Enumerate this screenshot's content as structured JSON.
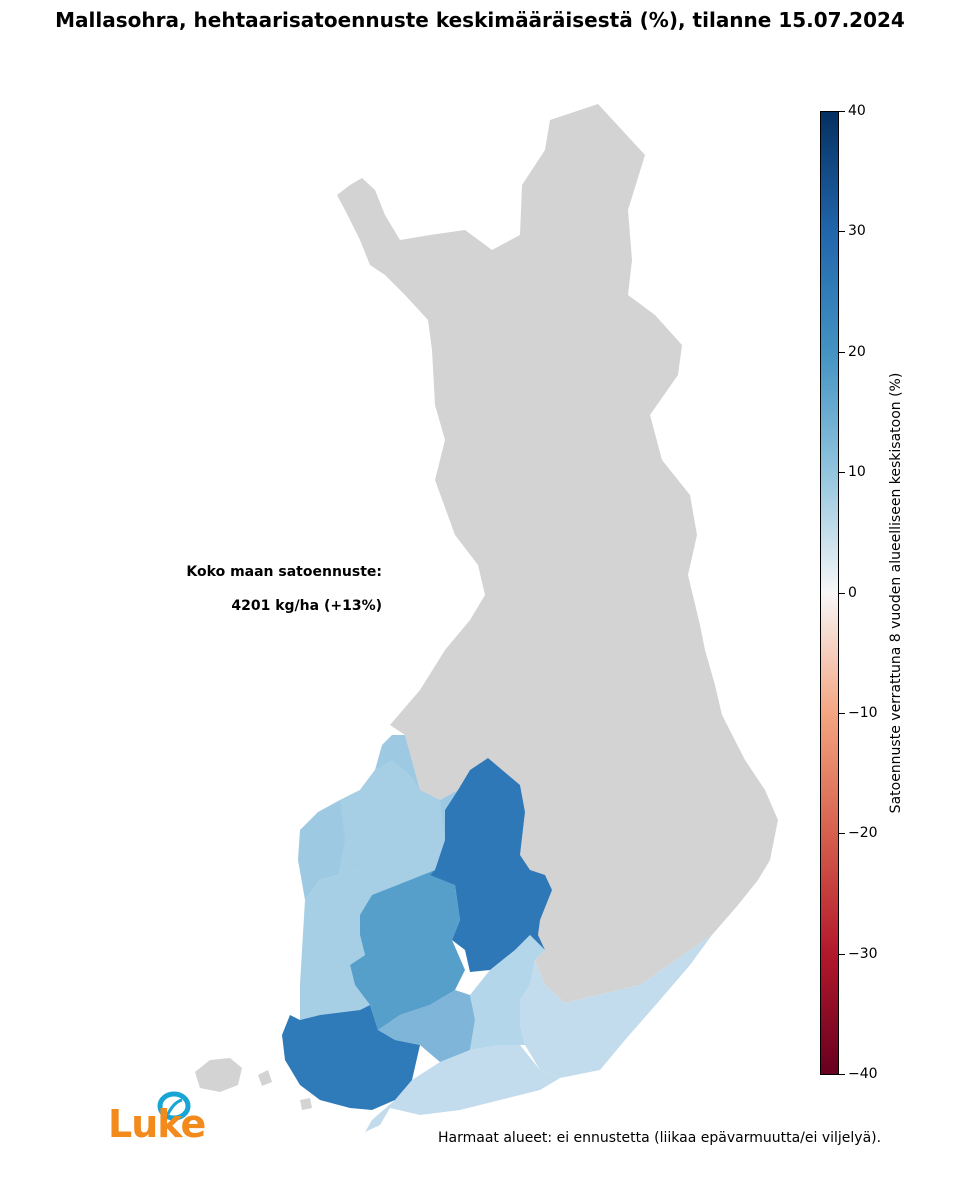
{
  "title": "Mallasohra, hehtaarisatoennuste keskimääräisestä (%), tilanne 15.07.2024",
  "national": {
    "label": "Koko maan satoennuste:",
    "value": "4201 kg/ha (+13%)"
  },
  "colorbar": {
    "label": "Satoennuste verrattuna 8 vuoden alueelliseen keskisatoon (%)",
    "range": [
      -40,
      40
    ],
    "colormap": "RdBu",
    "ticks": [
      "40",
      "30",
      "20",
      "10",
      "0",
      "−10",
      "−20",
      "−30",
      "−40"
    ]
  },
  "footnote": "Harmaat alueet: ei ennustetta (liikaa epävarmuutta/ei viljelyä).",
  "logo": {
    "text": "Luke",
    "color": "#f28a1c",
    "icon_color": "#18a5d6"
  },
  "colors": {
    "no_forecast": "#d3d3d3",
    "dark_blue": "#2e78b7",
    "mid_blue": "#569fcb",
    "light_blue": "#a6cfe5",
    "pale_blue": "#c2dced"
  }
}
